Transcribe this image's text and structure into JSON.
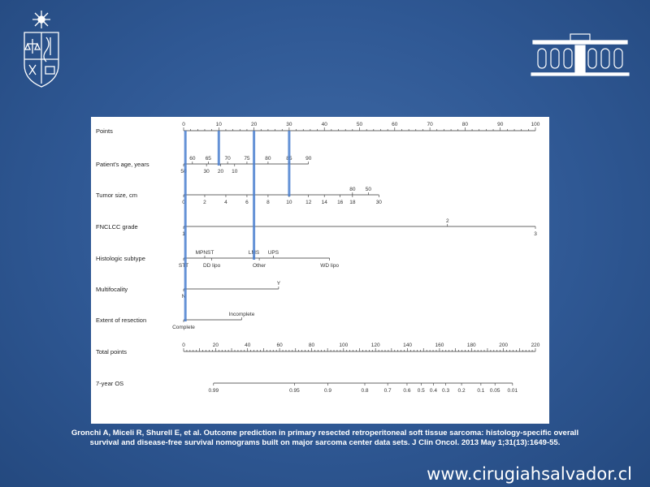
{
  "citation": {
    "line1": "Gronchi A, Miceli R, Shurell E, et al. Outcome prediction in primary resected retroperitoneal soft tissue sarcoma: histology-specific overall",
    "line2": "survival and disease-free survival nomograms built on major sarcoma center data sets. J Clin Oncol. 2013 May 1;31(13):1649-55."
  },
  "website": "www.cirugiahsalvador.cl",
  "logo_icon": "university-crest-icon",
  "building_icon": "building-facade-icon",
  "colors": {
    "highlight": "#4a7fcf",
    "axis": "#333333"
  },
  "nomogram": {
    "rows": [
      {
        "label": "Points",
        "ticks": [
          {
            "t": "0",
            "v": 0
          },
          {
            "t": "10",
            "v": 10
          },
          {
            "t": "20",
            "v": 20
          },
          {
            "t": "30",
            "v": 30
          },
          {
            "t": "40",
            "v": 40
          },
          {
            "t": "50",
            "v": 50
          },
          {
            "t": "60",
            "v": 60
          },
          {
            "t": "70",
            "v": 70
          },
          {
            "t": "80",
            "v": 80
          },
          {
            "t": "90",
            "v": 90
          },
          {
            "t": "100",
            "v": 100
          }
        ]
      },
      {
        "label": "Patient's age, years",
        "line": [
          0,
          35.5
        ],
        "above": [
          {
            "t": "60",
            "v": 2.5
          },
          {
            "t": "65",
            "v": 7
          },
          {
            "t": "70",
            "v": 12.5
          },
          {
            "t": "75",
            "v": 18
          },
          {
            "t": "80",
            "v": 24
          },
          {
            "t": "85",
            "v": 30
          },
          {
            "t": "90",
            "v": 35.5
          }
        ],
        "below": [
          {
            "t": "50",
            "v": 0
          },
          {
            "t": "30",
            "v": 6.5
          },
          {
            "t": "20",
            "v": 10.5
          },
          {
            "t": "10",
            "v": 14.5
          }
        ]
      },
      {
        "label": "Tumor size, cm",
        "line": [
          0,
          55.5
        ],
        "below": [
          {
            "t": "0",
            "v": 0
          },
          {
            "t": "2",
            "v": 6
          },
          {
            "t": "4",
            "v": 12
          },
          {
            "t": "6",
            "v": 18
          },
          {
            "t": "8",
            "v": 24
          },
          {
            "t": "10",
            "v": 30
          },
          {
            "t": "12",
            "v": 35.5
          },
          {
            "t": "14",
            "v": 40
          },
          {
            "t": "16",
            "v": 44.5
          },
          {
            "t": "18",
            "v": 48
          },
          {
            "t": "30",
            "v": 55.5
          }
        ],
        "above": [
          {
            "t": "80",
            "v": 48
          },
          {
            "t": "50",
            "v": 52.5
          }
        ]
      },
      {
        "label": "FNCLCC grade",
        "line": [
          0,
          100
        ],
        "above": [
          {
            "t": "2",
            "v": 75
          }
        ],
        "below": [
          {
            "t": "1",
            "v": 0
          },
          {
            "t": "3",
            "v": 100
          }
        ]
      },
      {
        "label": "Histologic subtype",
        "line": [
          0,
          41.5
        ],
        "above": [
          {
            "t": "MPNST",
            "v": 6
          },
          {
            "t": "LMS",
            "v": 20
          },
          {
            "t": "UPS",
            "v": 25.5
          }
        ],
        "below": [
          {
            "t": "STT",
            "v": 0
          },
          {
            "t": "DD lipo",
            "v": 8
          },
          {
            "t": "Other",
            "v": 21.5
          },
          {
            "t": "WD lipo",
            "v": 41.5
          }
        ]
      },
      {
        "label": "Multifocality",
        "line": [
          0,
          27
        ],
        "above": [
          {
            "t": "Y",
            "v": 27
          }
        ],
        "below": [
          {
            "t": "N",
            "v": 0
          }
        ]
      },
      {
        "label": "Extent of resection",
        "line": [
          0,
          16.5
        ],
        "above": [
          {
            "t": "Incomplete",
            "v": 16.5
          }
        ],
        "below": [
          {
            "t": "Complete",
            "v": 0
          }
        ]
      },
      {
        "label": "Total points",
        "ticks": [
          {
            "t": "0",
            "v": 0
          },
          {
            "t": "20",
            "v": 20
          },
          {
            "t": "40",
            "v": 40
          },
          {
            "t": "60",
            "v": 60
          },
          {
            "t": "80",
            "v": 80
          },
          {
            "t": "100",
            "v": 100
          },
          {
            "t": "120",
            "v": 120
          },
          {
            "t": "140",
            "v": 140
          },
          {
            "t": "160",
            "v": 160
          },
          {
            "t": "180",
            "v": 180
          },
          {
            "t": "200",
            "v": 200
          },
          {
            "t": "220",
            "v": 220
          }
        ],
        "max": 220
      },
      {
        "label": "7-year OS",
        "line": [
          8.5,
          93.5
        ],
        "below": [
          {
            "t": "0.99",
            "v": 8.5
          },
          {
            "t": "0.95",
            "v": 31.5
          },
          {
            "t": "0.9",
            "v": 41
          },
          {
            "t": "0.8",
            "v": 51.5
          },
          {
            "t": "0.7",
            "v": 58
          },
          {
            "t": "0.6",
            "v": 63.5
          },
          {
            "t": "0.5",
            "v": 67.5
          },
          {
            "t": "0.4",
            "v": 71
          },
          {
            "t": "0.3",
            "v": 74.5
          },
          {
            "t": "0.2",
            "v": 79
          },
          {
            "t": "0.1",
            "v": 84.5
          },
          {
            "t": "0.05",
            "v": 88.5
          },
          {
            "t": "0.01",
            "v": 93.5
          }
        ]
      }
    ],
    "highlights": [
      {
        "v": 0.5,
        "rows": [
          0,
          6
        ]
      },
      {
        "v": 10,
        "rows": [
          0,
          1
        ]
      },
      {
        "v": 20,
        "rows": [
          0,
          4
        ]
      },
      {
        "v": 30,
        "rows": [
          0,
          2
        ]
      }
    ]
  }
}
